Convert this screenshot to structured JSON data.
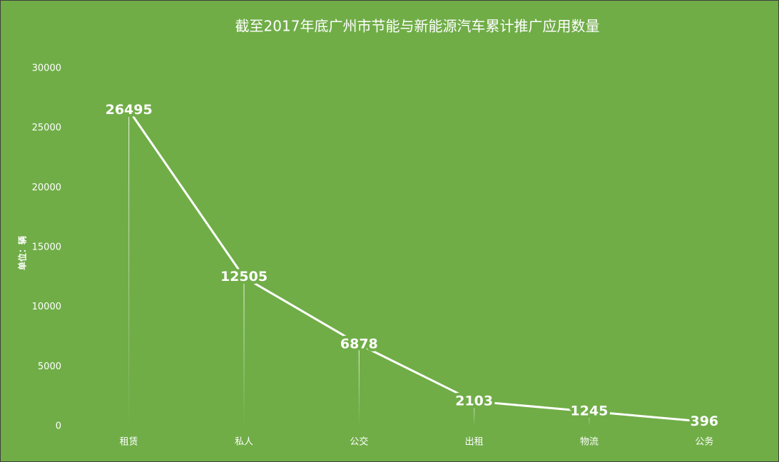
{
  "chart_data": {
    "type": "line",
    "title": "截至2017年底广州市节能与新能源汽车累计推广应用数量",
    "y_label": "单位：辆",
    "categories": [
      "租赁",
      "私人",
      "公交",
      "出租",
      "物流",
      "公务"
    ],
    "values": [
      26495,
      12505,
      6878,
      2103,
      1245,
      396
    ],
    "color": "#ffffff",
    "label_color": "#ffff00",
    "background": "#70ad47",
    "drop_lines": true,
    "ylim": [
      0,
      30000
    ],
    "yticks": [
      0,
      5000,
      10000,
      15000,
      20000,
      25000,
      30000
    ],
    "grid": false
  }
}
